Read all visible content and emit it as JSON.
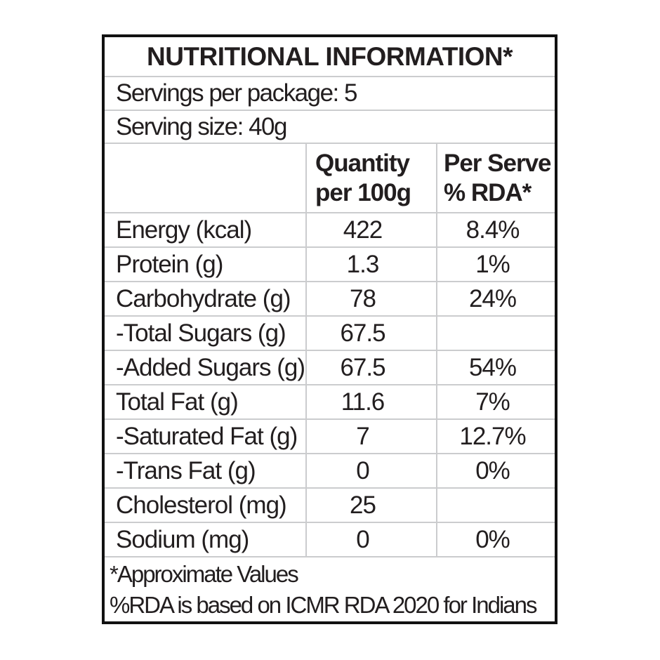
{
  "label": {
    "title": "NUTRITIONAL INFORMATION*",
    "servings_per_package": "Servings per package: 5",
    "serving_size": "Serving size: 40g",
    "columns": {
      "quantity_line1": "Quantity",
      "quantity_line2": "per 100g",
      "per_serve_line1": "Per Serve",
      "per_serve_line2": "% RDA*"
    },
    "rows": [
      {
        "nutrient": "Energy (kcal)",
        "quantity": "422",
        "rda": "8.4%"
      },
      {
        "nutrient": "Protein (g)",
        "quantity": "1.3",
        "rda": "1%"
      },
      {
        "nutrient": "Carbohydrate (g)",
        "quantity": "78",
        "rda": "24%"
      },
      {
        "nutrient": "-Total Sugars (g)",
        "quantity": "67.5",
        "rda": ""
      },
      {
        "nutrient": "-Added Sugars (g)",
        "quantity": "67.5",
        "rda": "54%"
      },
      {
        "nutrient": "Total Fat (g)",
        "quantity": "11.6",
        "rda": "7%"
      },
      {
        "nutrient": "-Saturated Fat (g)",
        "quantity": "7",
        "rda": "12.7%"
      },
      {
        "nutrient": "-Trans Fat (g)",
        "quantity": "0",
        "rda": "0%"
      },
      {
        "nutrient": "Cholesterol (mg)",
        "quantity": "25",
        "rda": ""
      },
      {
        "nutrient": "Sodium (mg)",
        "quantity": "0",
        "rda": "0%"
      }
    ],
    "footnotes": [
      "*Approximate Values",
      "%RDA is based on ICMR RDA 2020 for Indians"
    ],
    "colors": {
      "background": "#ffffff",
      "panel_background": "#ffffff",
      "outer_border": "#111111",
      "grid_line": "#cbccce",
      "text": "#221e1f"
    }
  }
}
